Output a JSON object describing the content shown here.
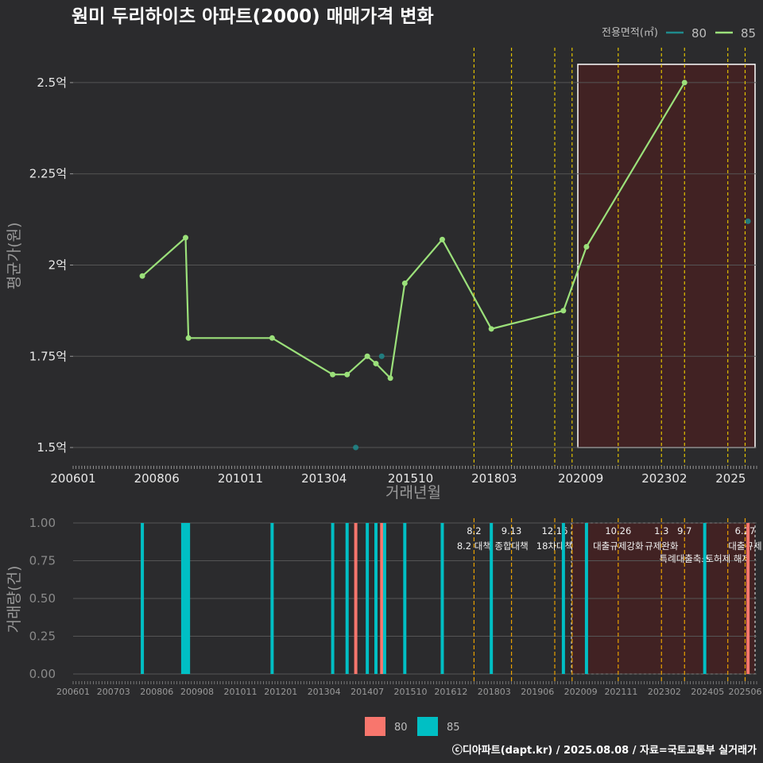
{
  "title": "원미 두리하이츠 아파트(2000) 매매가격 변화",
  "legend_title": "전용면적(㎡)",
  "footer": "ⓒ디아파트(dapt.kr) / 2025.08.08 / 자료=국토교통부 실거래가",
  "colors": {
    "background": "#2b2b2d",
    "series_80_line": "#1f8a8c",
    "series_85_line": "#9be07a",
    "bar_80": "#f8766d",
    "bar_85": "#00bfc4",
    "policy_line": "#e0c000",
    "highlight_fill": "#4a2020",
    "grid": "#555555"
  },
  "chart_data": [
    {
      "type": "line",
      "title": "원미 두리하이츠 아파트(2000) 매매가격 변화",
      "xlabel": "거래년월",
      "ylabel": "평균가(원)",
      "x_ticks": [
        "200601",
        "200806",
        "201011",
        "201304",
        "201510",
        "201803",
        "202009",
        "202302",
        "2025"
      ],
      "y_ticks": [
        "1.5억",
        "1.75억",
        "2억",
        "2.25억",
        "2.5억"
      ],
      "ylim": [
        1.45,
        2.6
      ],
      "grid": true,
      "legend": "top-right",
      "highlight_range": [
        "2020-08",
        "2025-12"
      ],
      "series": [
        {
          "name": "80",
          "points": [
            {
              "x": "2014-03",
              "y": 1.5
            },
            {
              "x": "2014-12",
              "y": 1.75
            },
            {
              "x": "2025-07",
              "y": 2.12
            }
          ]
        },
        {
          "name": "85",
          "points": [
            {
              "x": "2008-01",
              "y": 1.97
            },
            {
              "x": "2009-04",
              "y": 2.075
            },
            {
              "x": "2009-05",
              "y": 1.8
            },
            {
              "x": "2011-10",
              "y": 1.8
            },
            {
              "x": "2013-07",
              "y": 1.7
            },
            {
              "x": "2013-12",
              "y": 1.7
            },
            {
              "x": "2014-07",
              "y": 1.75
            },
            {
              "x": "2014-10",
              "y": 1.73
            },
            {
              "x": "2015-03",
              "y": 1.69
            },
            {
              "x": "2015-08",
              "y": 1.95
            },
            {
              "x": "2016-09",
              "y": 2.07
            },
            {
              "x": "2018-02",
              "y": 1.825
            },
            {
              "x": "2020-03",
              "y": 1.875
            },
            {
              "x": "2020-11",
              "y": 2.05
            },
            {
              "x": "2023-09",
              "y": 2.5
            }
          ]
        }
      ]
    },
    {
      "type": "bar",
      "xlabel": "",
      "ylabel": "거래량(건)",
      "x_ticks": [
        "200601",
        "200703",
        "200806",
        "200908",
        "201011",
        "201201",
        "201304",
        "201407",
        "201510",
        "201612",
        "201803",
        "201906",
        "202009",
        "202111",
        "202302",
        "202405",
        "202506"
      ],
      "y_ticks": [
        "0.00",
        "0.25",
        "0.50",
        "0.75",
        "1.00"
      ],
      "ylim": [
        0,
        1
      ],
      "legend": "bottom",
      "series": [
        {
          "name": "80",
          "bars": [
            {
              "x": "2014-03",
              "y": 1
            },
            {
              "x": "2014-12",
              "y": 1
            },
            {
              "x": "2025-07",
              "y": 1
            }
          ]
        },
        {
          "name": "85",
          "bars": [
            {
              "x": "2008-01",
              "y": 1
            },
            {
              "x": "2009-03",
              "y": 1
            },
            {
              "x": "2009-04",
              "y": 1
            },
            {
              "x": "2009-05",
              "y": 1
            },
            {
              "x": "2011-10",
              "y": 1
            },
            {
              "x": "2013-07",
              "y": 1
            },
            {
              "x": "2013-12",
              "y": 1
            },
            {
              "x": "2014-07",
              "y": 1
            },
            {
              "x": "2014-10",
              "y": 1
            },
            {
              "x": "2015-01",
              "y": 1
            },
            {
              "x": "2015-08",
              "y": 1
            },
            {
              "x": "2016-09",
              "y": 1
            },
            {
              "x": "2018-02",
              "y": 1
            },
            {
              "x": "2020-03",
              "y": 1
            },
            {
              "x": "2020-11",
              "y": 1
            },
            {
              "x": "2024-04",
              "y": 1
            }
          ]
        }
      ]
    }
  ],
  "policy_events": [
    {
      "date": "2017-08",
      "short": "8.2",
      "label": "8.2 대책",
      "sub": ""
    },
    {
      "date": "2018-09",
      "short": "9.13",
      "label": "종합대책",
      "sub": ""
    },
    {
      "date": "2019-12",
      "short": "12.16",
      "label": "18차대책",
      "sub": ""
    },
    {
      "date": "2020-06",
      "short": "",
      "label": "",
      "sub": ""
    },
    {
      "date": "2021-10",
      "short": "10.26",
      "label": "대출규제강화",
      "sub": ""
    },
    {
      "date": "2023-01",
      "short": "1.3",
      "label": "규제완화",
      "sub": ""
    },
    {
      "date": "2023-09",
      "short": "9.7",
      "label": "",
      "sub": "특례대출축소"
    },
    {
      "date": "2024-12",
      "short": "",
      "label": "",
      "sub": "토허제 해제"
    },
    {
      "date": "2025-06",
      "short": "6.27",
      "label": "대출규제",
      "sub": ""
    }
  ]
}
